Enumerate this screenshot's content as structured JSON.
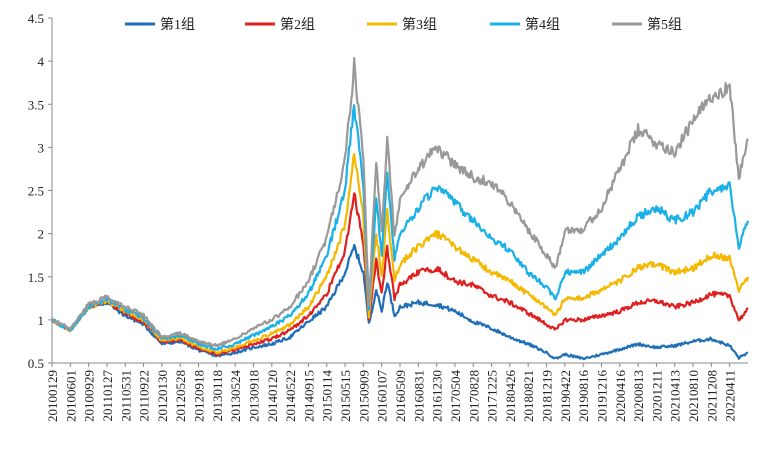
{
  "chart_data": {
    "type": "line",
    "title": "",
    "xlabel": "",
    "ylabel": "",
    "ylim": [
      0.5,
      4.5
    ],
    "yticks": [
      "0.5",
      "1",
      "1.5",
      "2",
      "2.5",
      "3",
      "3.5",
      "4",
      "4.5"
    ],
    "ytick_values": [
      0.5,
      1,
      1.5,
      2,
      2.5,
      3,
      3.5,
      4,
      4.5
    ],
    "xtick_labels": [
      "20100129",
      "20100601",
      "20100929",
      "20110127",
      "20110531",
      "20110922",
      "20120130",
      "20120528",
      "20120918",
      "20130118",
      "20130524",
      "20130918",
      "20140120",
      "20140522",
      "20140915",
      "20150114",
      "20150515",
      "20150909",
      "20160107",
      "20160509",
      "20160831",
      "20161230",
      "20170504",
      "20170828",
      "20171225",
      "20180426",
      "20180821",
      "20181219",
      "20190422",
      "20190816",
      "20191216",
      "20200416",
      "20200813",
      "20201211",
      "20210413",
      "20210810",
      "20211208",
      "20220411"
    ],
    "legend_position": "top",
    "grid": false,
    "x_index_range": [
      0,
      38
    ],
    "series": [
      {
        "name": "第1组",
        "color": "#1f6fb8",
        "x": [
          0,
          1,
          2,
          3,
          4,
          5,
          6,
          7,
          8,
          9,
          10,
          11,
          12,
          13,
          14,
          15,
          16,
          16.5,
          17,
          17.3,
          17.7,
          18,
          18.3,
          18.7,
          19,
          20,
          21,
          22,
          23,
          24,
          25,
          26,
          27,
          27.5,
          28,
          29,
          30,
          31,
          32,
          33,
          34,
          35,
          36,
          37,
          37.5,
          38
        ],
        "values": [
          1.0,
          0.88,
          1.15,
          1.2,
          1.05,
          0.95,
          0.72,
          0.75,
          0.65,
          0.58,
          0.62,
          0.68,
          0.72,
          0.8,
          0.98,
          1.15,
          1.55,
          1.85,
          1.55,
          0.95,
          1.35,
          1.1,
          1.45,
          1.05,
          1.15,
          1.2,
          1.18,
          1.1,
          0.98,
          0.9,
          0.8,
          0.72,
          0.62,
          0.55,
          0.6,
          0.55,
          0.6,
          0.66,
          0.72,
          0.68,
          0.7,
          0.75,
          0.78,
          0.7,
          0.56,
          0.62
        ]
      },
      {
        "name": "第2组",
        "color": "#e01f1f",
        "x": [
          0,
          1,
          2,
          3,
          4,
          5,
          6,
          7,
          8,
          9,
          10,
          11,
          12,
          13,
          14,
          15,
          16,
          16.5,
          17,
          17.3,
          17.7,
          18,
          18.3,
          18.7,
          19,
          20,
          21,
          22,
          23,
          24,
          25,
          26,
          27,
          27.5,
          28,
          29,
          30,
          31,
          32,
          33,
          34,
          35,
          36,
          37,
          37.5,
          38
        ],
        "values": [
          1.0,
          0.88,
          1.15,
          1.22,
          1.08,
          0.98,
          0.74,
          0.77,
          0.67,
          0.6,
          0.65,
          0.72,
          0.78,
          0.88,
          1.05,
          1.3,
          1.8,
          2.45,
          1.9,
          1.0,
          1.7,
          1.3,
          1.85,
          1.25,
          1.4,
          1.55,
          1.6,
          1.45,
          1.4,
          1.28,
          1.2,
          1.08,
          0.95,
          0.88,
          1.0,
          1.0,
          1.05,
          1.1,
          1.2,
          1.22,
          1.15,
          1.2,
          1.3,
          1.28,
          1.0,
          1.12
        ]
      },
      {
        "name": "第3组",
        "color": "#f5b800",
        "x": [
          0,
          1,
          2,
          3,
          4,
          5,
          6,
          7,
          8,
          9,
          10,
          11,
          12,
          13,
          14,
          15,
          16,
          16.5,
          17,
          17.3,
          17.7,
          18,
          18.3,
          18.7,
          19,
          20,
          21,
          22,
          23,
          24,
          25,
          26,
          27,
          27.5,
          28,
          29,
          30,
          31,
          32,
          33,
          34,
          35,
          36,
          37,
          37.5,
          38
        ],
        "values": [
          1.0,
          0.88,
          1.15,
          1.23,
          1.1,
          1.0,
          0.76,
          0.79,
          0.69,
          0.62,
          0.68,
          0.76,
          0.84,
          0.95,
          1.15,
          1.5,
          2.1,
          2.95,
          2.2,
          1.05,
          2.0,
          1.5,
          2.3,
          1.45,
          1.65,
          1.85,
          2.0,
          1.85,
          1.7,
          1.55,
          1.45,
          1.3,
          1.15,
          1.05,
          1.25,
          1.25,
          1.35,
          1.45,
          1.6,
          1.65,
          1.55,
          1.6,
          1.75,
          1.72,
          1.35,
          1.5
        ]
      },
      {
        "name": "第4组",
        "color": "#1ab0e8",
        "x": [
          0,
          1,
          2,
          3,
          4,
          5,
          6,
          7,
          8,
          9,
          10,
          11,
          12,
          13,
          14,
          15,
          16,
          16.5,
          17,
          17.3,
          17.7,
          18,
          18.3,
          18.7,
          19,
          20,
          21,
          22,
          23,
          24,
          25,
          26,
          27,
          27.5,
          28,
          29,
          30,
          31,
          32,
          33,
          34,
          35,
          36,
          37,
          37.5,
          38
        ],
        "values": [
          1.0,
          0.88,
          1.16,
          1.24,
          1.12,
          1.02,
          0.78,
          0.82,
          0.72,
          0.66,
          0.72,
          0.82,
          0.92,
          1.05,
          1.3,
          1.75,
          2.5,
          3.5,
          2.55,
          1.1,
          2.4,
          1.75,
          2.75,
          1.7,
          2.0,
          2.3,
          2.55,
          2.35,
          2.15,
          1.95,
          1.8,
          1.55,
          1.38,
          1.25,
          1.55,
          1.55,
          1.75,
          1.95,
          2.2,
          2.3,
          2.15,
          2.25,
          2.5,
          2.55,
          1.85,
          2.15
        ]
      },
      {
        "name": "第5组",
        "color": "#999999",
        "x": [
          0,
          1,
          2,
          3,
          4,
          5,
          6,
          7,
          8,
          9,
          10,
          11,
          12,
          13,
          14,
          15,
          16,
          16.5,
          17,
          17.3,
          17.7,
          18,
          18.3,
          18.7,
          19,
          20,
          21,
          22,
          23,
          24,
          25,
          26,
          27,
          27.5,
          28,
          29,
          30,
          31,
          32,
          33,
          34,
          35,
          36,
          37,
          37.5,
          38
        ],
        "values": [
          1.0,
          0.9,
          1.18,
          1.26,
          1.15,
          1.05,
          0.8,
          0.85,
          0.75,
          0.7,
          0.78,
          0.9,
          1.0,
          1.15,
          1.45,
          1.95,
          2.85,
          3.95,
          2.85,
          1.15,
          2.85,
          2.0,
          3.1,
          1.95,
          2.4,
          2.75,
          3.0,
          2.8,
          2.65,
          2.6,
          2.35,
          2.05,
          1.75,
          1.6,
          2.05,
          2.05,
          2.3,
          2.75,
          3.2,
          3.05,
          2.95,
          3.3,
          3.6,
          3.7,
          2.65,
          3.1
        ]
      }
    ]
  }
}
